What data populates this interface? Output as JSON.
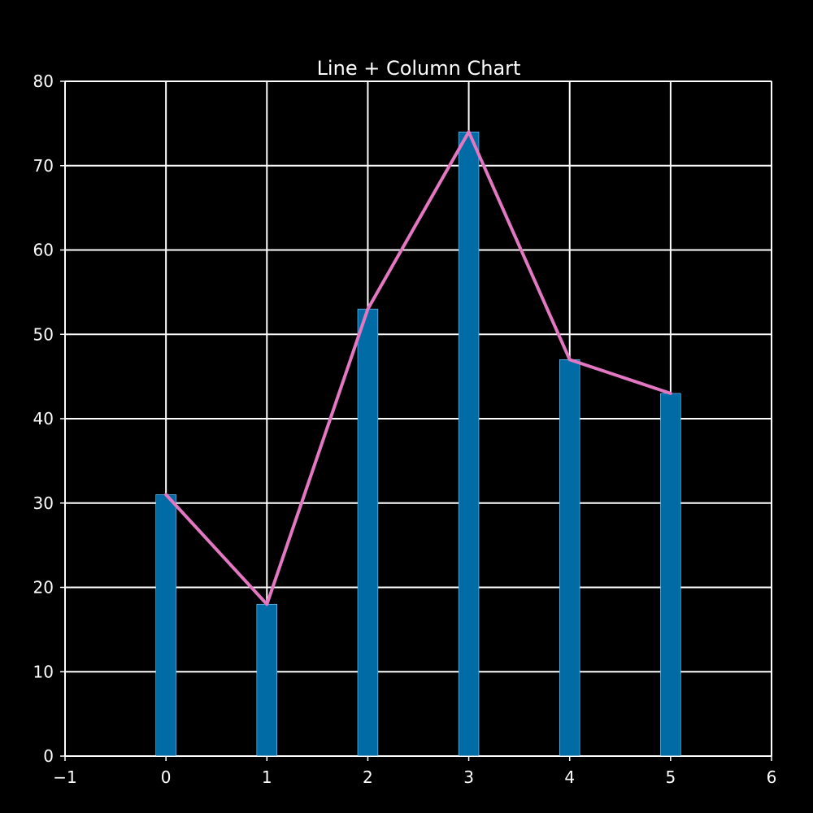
{
  "chart_data": {
    "type": "bar",
    "title": "Line + Column Chart",
    "xlabel": "",
    "ylabel": "",
    "x": [
      0,
      1,
      2,
      3,
      4,
      5
    ],
    "series": [
      {
        "kind": "bar",
        "values": [
          31,
          18,
          53,
          74,
          47,
          43
        ],
        "color": "#006ba4"
      },
      {
        "kind": "line",
        "values": [
          31,
          18,
          53,
          74,
          47,
          43
        ],
        "color": "#e377c2"
      }
    ],
    "xlim": [
      -1,
      6
    ],
    "ylim": [
      0,
      80
    ],
    "x_ticks": [
      -1,
      0,
      1,
      2,
      3,
      4,
      5,
      6
    ],
    "x_tick_labels": [
      "−1",
      "0",
      "1",
      "2",
      "3",
      "4",
      "5",
      "6"
    ],
    "y_ticks": [
      0,
      10,
      20,
      30,
      40,
      50,
      60,
      70,
      80
    ],
    "y_tick_labels": [
      "0",
      "10",
      "20",
      "30",
      "40",
      "50",
      "60",
      "70",
      "80"
    ],
    "grid": true,
    "legend": "none",
    "colors": {
      "background": "#000000",
      "grid": "#ffffff",
      "text": "#ffffff",
      "bar_edge": "#8fd0ff"
    }
  }
}
